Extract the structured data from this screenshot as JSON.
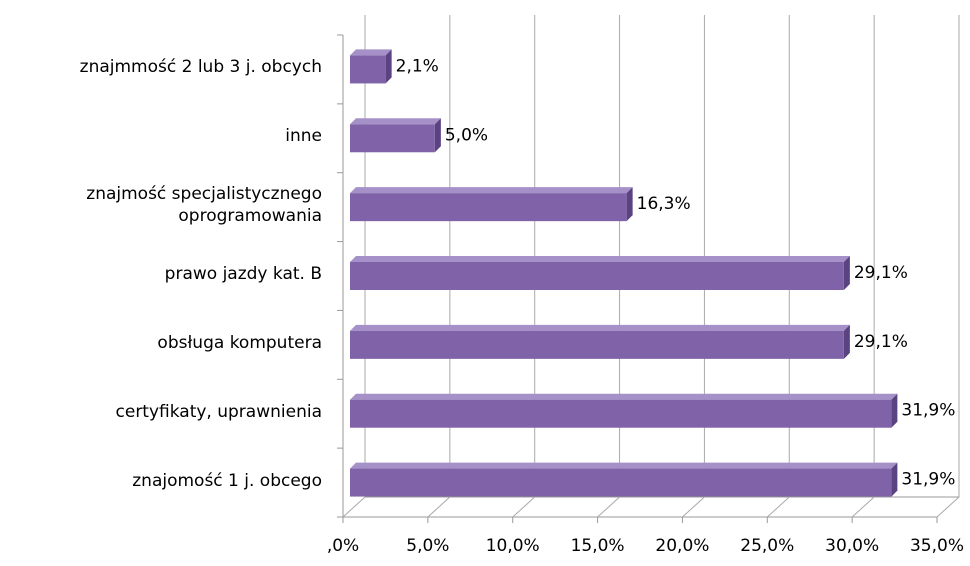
{
  "chart_data": {
    "type": "bar",
    "orientation": "horizontal",
    "categories": [
      "znajmmość 2 lub 3 j. obcych",
      "inne",
      "znajmość specjalistycznego\noprogramowania",
      "prawo jazdy kat. B",
      "obsługa komputera",
      "certyfikaty, uprawnienia",
      "znajomość 1 j. obcego"
    ],
    "values": [
      2.1,
      5.0,
      16.3,
      29.1,
      29.1,
      31.9,
      31.9
    ],
    "value_labels": [
      "2,1%",
      "5,0%",
      "16,3%",
      "29,1%",
      "29,1%",
      "31,9%",
      "31,9%"
    ],
    "color": "#7f62a8",
    "xlim": [
      0,
      35
    ],
    "xticks": [
      {
        "value": 0,
        "label": ",0%"
      },
      {
        "value": 5,
        "label": "5,0%"
      },
      {
        "value": 10,
        "label": "10,0%"
      },
      {
        "value": 15,
        "label": "15,0%"
      },
      {
        "value": 20,
        "label": "20,0%"
      },
      {
        "value": 25,
        "label": "25,0%"
      },
      {
        "value": 30,
        "label": "30,0%"
      },
      {
        "value": 35,
        "label": "35,0%"
      }
    ],
    "grid": true
  }
}
